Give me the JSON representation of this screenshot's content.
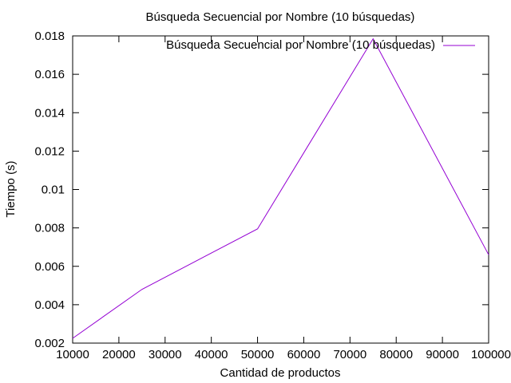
{
  "chart_data": {
    "type": "line",
    "title": "Búsqueda Secuencial por Nombre (10 búsquedas)",
    "xlabel": "Cantidad de productos",
    "ylabel": "Tiempo (s)",
    "xlim": [
      10000,
      100000
    ],
    "ylim": [
      0.002,
      0.018
    ],
    "x_ticks": [
      10000,
      20000,
      30000,
      40000,
      50000,
      60000,
      70000,
      80000,
      90000,
      100000
    ],
    "x_tick_labels": [
      "10000",
      "20000",
      "30000",
      "40000",
      "50000",
      "60000",
      "70000",
      "80000",
      "90000",
      "100000"
    ],
    "y_ticks": [
      0.002,
      0.004,
      0.006,
      0.008,
      0.01,
      0.012,
      0.014,
      0.016,
      0.018
    ],
    "y_tick_labels": [
      "0.002",
      "0.004",
      "0.006",
      "0.008",
      "0.01",
      "0.012",
      "0.014",
      "0.016",
      "0.018"
    ],
    "grid": false,
    "legend_position": "top-right",
    "series": [
      {
        "name": "Búsqueda Secuencial por Nombre (10 búsquedas)",
        "color": "#9400d3",
        "x": [
          10000,
          25000,
          50000,
          75000,
          100000
        ],
        "y": [
          0.00225,
          0.0048,
          0.00795,
          0.01785,
          0.0066
        ]
      }
    ]
  }
}
